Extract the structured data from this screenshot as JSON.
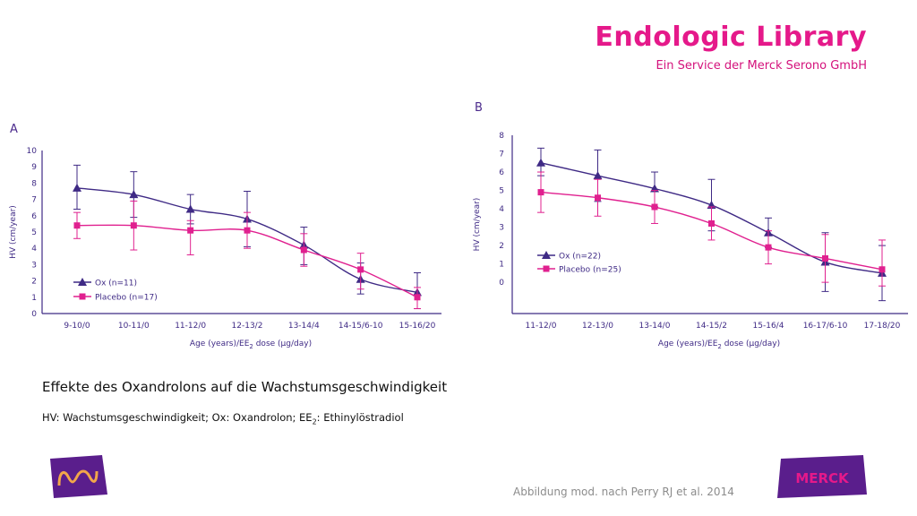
{
  "header": {
    "brand_title": "Endologic Library",
    "brand_subtitle": "Ein Service der Merck Serono GmbH"
  },
  "caption": {
    "title": "Effekte des Oxandrolons auf die Wachstumsgeschwindigkeit",
    "abbrev_pre": "HV: Wachstumsgeschwindigkeit; Ox: Oxandrolon; EE",
    "abbrev_sub": "2",
    "abbrev_post": ": Ethinylöstradiol"
  },
  "footer": {
    "source": "Abbildung mod. nach Perry RJ et al. 2014"
  },
  "logos": {
    "right_text": "MERCK"
  },
  "colors": {
    "ox": "#3f2a85",
    "placebo": "#e0208f",
    "axis": "#3f2a85",
    "brand": "#e5198a"
  },
  "chart_data": [
    {
      "panel": "A",
      "type": "line",
      "categories": [
        "9-10/0",
        "10-11/0",
        "11-12/0",
        "12-13/2",
        "13-14/4",
        "14-15/6-10",
        "15-16/20"
      ],
      "ylabel": "HV (cm/year)",
      "xlabel_pre": "Age (years)/EE",
      "xlabel_sub": "2",
      "xlabel_post": " dose (µg/day)",
      "ylim": [
        0,
        10
      ],
      "yticks": [
        0,
        1,
        2,
        3,
        4,
        5,
        6,
        7,
        8,
        9,
        10
      ],
      "legend_position": "bottom-left",
      "series": [
        {
          "name": "Ox (n=11)",
          "marker": "triangle",
          "color": "#3f2a85",
          "values": [
            7.7,
            7.3,
            6.4,
            5.8,
            4.2,
            2.1,
            1.3
          ],
          "err_low": [
            6.4,
            5.9,
            5.5,
            4.1,
            3.0,
            1.2,
            0.3
          ],
          "err_high": [
            9.1,
            8.7,
            7.3,
            7.5,
            5.3,
            3.1,
            2.5
          ]
        },
        {
          "name": "Placebo (n=17)",
          "marker": "square",
          "color": "#e0208f",
          "values": [
            5.4,
            5.4,
            5.1,
            5.1,
            3.9,
            2.7,
            1.0
          ],
          "err_low": [
            4.6,
            3.9,
            3.6,
            4.0,
            2.9,
            1.5,
            0.3
          ],
          "err_high": [
            6.2,
            6.9,
            5.7,
            6.2,
            4.9,
            3.7,
            1.6
          ]
        }
      ]
    },
    {
      "panel": "B",
      "type": "line",
      "categories": [
        "11-12/0",
        "12-13/0",
        "13-14/0",
        "14-15/2",
        "15-16/4",
        "16-17/6-10",
        "17-18/20"
      ],
      "ylabel": "HV (cm/year)",
      "xlabel_pre": "Age (years)/EE",
      "xlabel_sub": "2",
      "xlabel_post": " dose (µg/day)",
      "ylim": [
        -1.7,
        8
      ],
      "yticks": [
        0,
        1,
        2,
        3,
        4,
        5,
        6,
        7,
        8
      ],
      "legend_position": "bottom-left",
      "series": [
        {
          "name": "Ox (n=22)",
          "marker": "triangle",
          "color": "#3f2a85",
          "values": [
            6.5,
            5.8,
            5.1,
            4.2,
            2.7,
            1.1,
            0.5
          ],
          "err_low": [
            5.8,
            4.4,
            4.1,
            2.8,
            1.9,
            -0.5,
            -1.0
          ],
          "err_high": [
            7.3,
            7.2,
            6.0,
            5.6,
            3.5,
            2.7,
            2.0
          ]
        },
        {
          "name": "Placebo (n=25)",
          "marker": "square",
          "color": "#e0208f",
          "values": [
            4.9,
            4.6,
            4.1,
            3.2,
            1.9,
            1.3,
            0.7
          ],
          "err_low": [
            3.8,
            3.6,
            3.2,
            2.3,
            1.0,
            0.0,
            -0.2
          ],
          "err_high": [
            6.0,
            5.6,
            5.0,
            4.1,
            2.8,
            2.6,
            2.3
          ]
        }
      ]
    }
  ]
}
